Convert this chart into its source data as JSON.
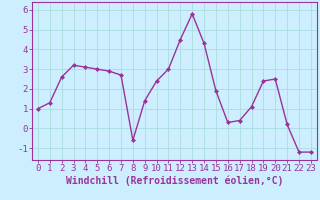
{
  "x": [
    0,
    1,
    2,
    3,
    4,
    5,
    6,
    7,
    8,
    9,
    10,
    11,
    12,
    13,
    14,
    15,
    16,
    17,
    18,
    19,
    20,
    21,
    22,
    23
  ],
  "y": [
    1.0,
    1.3,
    2.6,
    3.2,
    3.1,
    3.0,
    2.9,
    2.7,
    -0.6,
    1.4,
    2.4,
    3.0,
    4.5,
    5.8,
    4.3,
    1.9,
    0.3,
    0.4,
    1.1,
    2.4,
    2.5,
    0.2,
    -1.2,
    -1.2
  ],
  "line_color": "#993399",
  "marker": "D",
  "marker_size": 2,
  "background_color": "#cceeff",
  "grid_color": "#aadddd",
  "xlabel": "Windchill (Refroidissement éolien,°C)",
  "xlim": [
    -0.5,
    23.5
  ],
  "ylim": [
    -1.6,
    6.4
  ],
  "yticks": [
    -1,
    0,
    1,
    2,
    3,
    4,
    5,
    6
  ],
  "xticks": [
    0,
    1,
    2,
    3,
    4,
    5,
    6,
    7,
    8,
    9,
    10,
    11,
    12,
    13,
    14,
    15,
    16,
    17,
    18,
    19,
    20,
    21,
    22,
    23
  ],
  "tick_fontsize": 6.5,
  "xlabel_fontsize": 7,
  "line_width": 1.0
}
